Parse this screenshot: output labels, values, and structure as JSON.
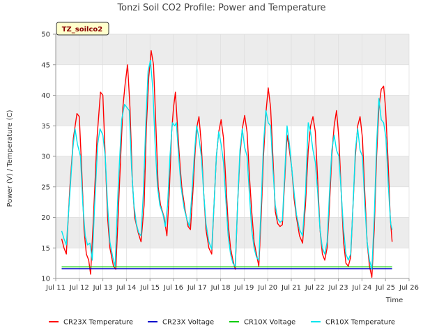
{
  "chart_data": {
    "type": "line",
    "title": "Tonzi Soil CO2 Profile: Power and Temperature",
    "xlabel": "Time",
    "ylabel": "Power (V) / Temperature (C)",
    "ylim": [
      10,
      50
    ],
    "yticks": [
      10,
      15,
      20,
      25,
      30,
      35,
      40,
      45,
      50
    ],
    "xlim": [
      11,
      26
    ],
    "xticks": [
      {
        "v": 11,
        "label": "Jul 11"
      },
      {
        "v": 12,
        "label": "Jul 12"
      },
      {
        "v": 13,
        "label": "Jul 13"
      },
      {
        "v": 14,
        "label": "Jul 14"
      },
      {
        "v": 15,
        "label": "Jul 15"
      },
      {
        "v": 16,
        "label": "Jul 16"
      },
      {
        "v": 17,
        "label": "Jul 17"
      },
      {
        "v": 18,
        "label": "Jul 18"
      },
      {
        "v": 19,
        "label": "Jul 19"
      },
      {
        "v": 20,
        "label": "Jul 20"
      },
      {
        "v": 21,
        "label": "Jul 21"
      },
      {
        "v": 22,
        "label": "Jul 22"
      },
      {
        "v": 23,
        "label": "Jul 23"
      },
      {
        "v": 24,
        "label": "Jul 24"
      },
      {
        "v": 25,
        "label": "Jul 25"
      },
      {
        "v": 26,
        "label": "Jul 26"
      }
    ],
    "tag": "TZ_soilco2",
    "grid": true,
    "legend_position": "bottom",
    "series": [
      {
        "name": "CR23X Temperature",
        "color": "#ff0000",
        "points": [
          [
            11.25,
            16.5
          ],
          [
            11.35,
            15.0
          ],
          [
            11.45,
            14.0
          ],
          [
            11.6,
            25.0
          ],
          [
            11.75,
            33.0
          ],
          [
            11.9,
            37.0
          ],
          [
            12.0,
            36.5
          ],
          [
            12.1,
            28.0
          ],
          [
            12.2,
            18.0
          ],
          [
            12.3,
            14.0
          ],
          [
            12.4,
            13.0
          ],
          [
            12.48,
            10.7
          ],
          [
            12.6,
            20.0
          ],
          [
            12.75,
            33.0
          ],
          [
            12.9,
            40.5
          ],
          [
            13.0,
            40.0
          ],
          [
            13.1,
            30.0
          ],
          [
            13.2,
            20.0
          ],
          [
            13.3,
            15.0
          ],
          [
            13.45,
            12.0
          ],
          [
            13.55,
            11.5
          ],
          [
            13.7,
            25.0
          ],
          [
            13.85,
            38.0
          ],
          [
            13.95,
            42.0
          ],
          [
            14.05,
            45.0
          ],
          [
            14.15,
            38.0
          ],
          [
            14.25,
            26.0
          ],
          [
            14.35,
            20.0
          ],
          [
            14.5,
            17.5
          ],
          [
            14.62,
            16.0
          ],
          [
            14.75,
            22.0
          ],
          [
            14.85,
            35.0
          ],
          [
            14.95,
            43.0
          ],
          [
            15.05,
            47.3
          ],
          [
            15.15,
            45.0
          ],
          [
            15.25,
            35.0
          ],
          [
            15.35,
            25.0
          ],
          [
            15.45,
            22.0
          ],
          [
            15.6,
            20.0
          ],
          [
            15.72,
            17.0
          ],
          [
            15.82,
            24.0
          ],
          [
            15.92,
            34.0
          ],
          [
            16.0,
            38.0
          ],
          [
            16.08,
            40.5
          ],
          [
            16.15,
            36.0
          ],
          [
            16.25,
            30.0
          ],
          [
            16.35,
            25.0
          ],
          [
            16.5,
            21.0
          ],
          [
            16.62,
            18.5
          ],
          [
            16.72,
            18.0
          ],
          [
            16.82,
            24.0
          ],
          [
            16.92,
            31.0
          ],
          [
            17.0,
            35.0
          ],
          [
            17.08,
            36.5
          ],
          [
            17.18,
            32.0
          ],
          [
            17.28,
            24.0
          ],
          [
            17.38,
            18.0
          ],
          [
            17.5,
            15.0
          ],
          [
            17.62,
            14.0
          ],
          [
            17.72,
            22.0
          ],
          [
            17.82,
            30.0
          ],
          [
            17.92,
            34.0
          ],
          [
            18.02,
            36.0
          ],
          [
            18.12,
            33.0
          ],
          [
            18.22,
            26.0
          ],
          [
            18.32,
            19.0
          ],
          [
            18.42,
            15.0
          ],
          [
            18.52,
            13.0
          ],
          [
            18.62,
            11.5
          ],
          [
            18.72,
            22.0
          ],
          [
            18.82,
            30.0
          ],
          [
            18.92,
            34.5
          ],
          [
            19.02,
            36.7
          ],
          [
            19.12,
            34.0
          ],
          [
            19.22,
            27.0
          ],
          [
            19.32,
            21.0
          ],
          [
            19.42,
            16.0
          ],
          [
            19.52,
            14.0
          ],
          [
            19.62,
            12.0
          ],
          [
            19.72,
            20.0
          ],
          [
            19.82,
            30.0
          ],
          [
            19.92,
            37.0
          ],
          [
            20.02,
            41.2
          ],
          [
            20.12,
            38.0
          ],
          [
            20.22,
            30.0
          ],
          [
            20.32,
            21.0
          ],
          [
            20.42,
            19.0
          ],
          [
            20.52,
            18.5
          ],
          [
            20.62,
            18.8
          ],
          [
            20.72,
            26.0
          ],
          [
            20.82,
            33.5
          ],
          [
            20.92,
            31.0
          ],
          [
            21.02,
            28.0
          ],
          [
            21.12,
            23.0
          ],
          [
            21.22,
            20.0
          ],
          [
            21.35,
            17.0
          ],
          [
            21.48,
            15.8
          ],
          [
            21.6,
            22.0
          ],
          [
            21.72,
            31.0
          ],
          [
            21.82,
            35.0
          ],
          [
            21.92,
            36.5
          ],
          [
            22.02,
            34.0
          ],
          [
            22.12,
            26.0
          ],
          [
            22.22,
            18.0
          ],
          [
            22.32,
            14.0
          ],
          [
            22.42,
            13.0
          ],
          [
            22.52,
            15.0
          ],
          [
            22.62,
            22.0
          ],
          [
            22.72,
            30.0
          ],
          [
            22.82,
            35.0
          ],
          [
            22.92,
            37.5
          ],
          [
            23.02,
            33.0
          ],
          [
            23.12,
            24.0
          ],
          [
            23.22,
            16.0
          ],
          [
            23.32,
            12.5
          ],
          [
            23.42,
            12.0
          ],
          [
            23.52,
            13.5
          ],
          [
            23.62,
            22.0
          ],
          [
            23.72,
            30.0
          ],
          [
            23.82,
            35.0
          ],
          [
            23.92,
            36.5
          ],
          [
            24.02,
            33.0
          ],
          [
            24.12,
            24.0
          ],
          [
            24.22,
            16.0
          ],
          [
            24.32,
            12.0
          ],
          [
            24.42,
            10.2
          ],
          [
            24.52,
            18.0
          ],
          [
            24.62,
            30.0
          ],
          [
            24.72,
            38.0
          ],
          [
            24.82,
            41.0
          ],
          [
            24.92,
            41.5
          ],
          [
            25.0,
            38.0
          ],
          [
            25.1,
            30.0
          ],
          [
            25.2,
            20.0
          ],
          [
            25.28,
            16.0
          ]
        ]
      },
      {
        "name": "CR23X Voltage",
        "color": "#0000cc",
        "points": [
          [
            11.25,
            11.6
          ],
          [
            12.5,
            11.6
          ],
          [
            13.5,
            11.6
          ],
          [
            18.5,
            11.6
          ],
          [
            23.5,
            11.6
          ],
          [
            25.28,
            11.6
          ]
        ]
      },
      {
        "name": "CR10X Voltage",
        "color": "#00cc00",
        "points": [
          [
            11.25,
            11.9
          ],
          [
            25.28,
            11.9
          ]
        ]
      },
      {
        "name": "CR10X Temperature",
        "color": "#00e5ee",
        "points": [
          [
            11.25,
            17.8
          ],
          [
            11.35,
            16.5
          ],
          [
            11.45,
            15.5
          ],
          [
            11.6,
            24.0
          ],
          [
            11.72,
            31.0
          ],
          [
            11.82,
            34.5
          ],
          [
            11.92,
            32.0
          ],
          [
            12.05,
            30.0
          ],
          [
            12.15,
            22.0
          ],
          [
            12.25,
            17.0
          ],
          [
            12.35,
            15.5
          ],
          [
            12.45,
            15.8
          ],
          [
            12.55,
            13.0
          ],
          [
            12.65,
            22.0
          ],
          [
            12.78,
            32.0
          ],
          [
            12.88,
            34.5
          ],
          [
            13.0,
            33.5
          ],
          [
            13.1,
            30.0
          ],
          [
            13.2,
            22.0
          ],
          [
            13.3,
            16.0
          ],
          [
            13.42,
            13.5
          ],
          [
            13.52,
            12.0
          ],
          [
            13.65,
            25.0
          ],
          [
            13.8,
            36.0
          ],
          [
            13.92,
            38.5
          ],
          [
            14.02,
            38.0
          ],
          [
            14.12,
            37.5
          ],
          [
            14.22,
            28.0
          ],
          [
            14.32,
            22.0
          ],
          [
            14.42,
            19.0
          ],
          [
            14.52,
            17.5
          ],
          [
            14.62,
            17.0
          ],
          [
            14.72,
            24.0
          ],
          [
            14.82,
            35.0
          ],
          [
            14.92,
            44.0
          ],
          [
            15.02,
            45.7
          ],
          [
            15.12,
            41.0
          ],
          [
            15.22,
            32.0
          ],
          [
            15.32,
            25.0
          ],
          [
            15.42,
            22.0
          ],
          [
            15.55,
            20.5
          ],
          [
            15.65,
            18.5
          ],
          [
            15.75,
            22.0
          ],
          [
            15.85,
            30.0
          ],
          [
            15.95,
            35.5
          ],
          [
            16.05,
            35.0
          ],
          [
            16.12,
            35.5
          ],
          [
            16.22,
            30.0
          ],
          [
            16.32,
            25.0
          ],
          [
            16.45,
            21.5
          ],
          [
            16.58,
            19.5
          ],
          [
            16.68,
            18.5
          ],
          [
            16.78,
            24.0
          ],
          [
            16.88,
            30.0
          ],
          [
            16.98,
            35.0
          ],
          [
            17.08,
            33.0
          ],
          [
            17.18,
            30.0
          ],
          [
            17.28,
            24.0
          ],
          [
            17.38,
            19.0
          ],
          [
            17.5,
            16.0
          ],
          [
            17.62,
            14.8
          ],
          [
            17.72,
            22.0
          ],
          [
            17.82,
            30.0
          ],
          [
            17.92,
            34.0
          ],
          [
            18.02,
            32.0
          ],
          [
            18.12,
            29.0
          ],
          [
            18.22,
            23.0
          ],
          [
            18.32,
            17.0
          ],
          [
            18.42,
            14.0
          ],
          [
            18.52,
            12.5
          ],
          [
            18.62,
            12.0
          ],
          [
            18.72,
            22.0
          ],
          [
            18.82,
            31.0
          ],
          [
            18.92,
            34.5
          ],
          [
            19.02,
            31.5
          ],
          [
            19.12,
            30.0
          ],
          [
            19.22,
            24.0
          ],
          [
            19.32,
            18.0
          ],
          [
            19.42,
            15.0
          ],
          [
            19.52,
            13.5
          ],
          [
            19.62,
            13.0
          ],
          [
            19.72,
            22.0
          ],
          [
            19.82,
            32.0
          ],
          [
            19.92,
            37.5
          ],
          [
            20.02,
            35.5
          ],
          [
            20.12,
            35.0
          ],
          [
            20.22,
            28.0
          ],
          [
            20.32,
            22.0
          ],
          [
            20.42,
            19.8
          ],
          [
            20.52,
            19.2
          ],
          [
            20.62,
            19.5
          ],
          [
            20.72,
            27.0
          ],
          [
            20.82,
            35.0
          ],
          [
            20.92,
            32.0
          ],
          [
            21.02,
            28.0
          ],
          [
            21.12,
            24.0
          ],
          [
            21.22,
            20.5
          ],
          [
            21.35,
            18.0
          ],
          [
            21.48,
            17.0
          ],
          [
            21.6,
            24.0
          ],
          [
            21.72,
            35.5
          ],
          [
            21.82,
            34.0
          ],
          [
            21.92,
            31.0
          ],
          [
            22.02,
            29.0
          ],
          [
            22.12,
            24.0
          ],
          [
            22.22,
            18.0
          ],
          [
            22.32,
            15.0
          ],
          [
            22.42,
            14.0
          ],
          [
            22.52,
            16.0
          ],
          [
            22.62,
            24.0
          ],
          [
            22.72,
            31.0
          ],
          [
            22.82,
            33.5
          ],
          [
            22.92,
            31.0
          ],
          [
            23.02,
            30.0
          ],
          [
            23.12,
            24.0
          ],
          [
            23.22,
            18.0
          ],
          [
            23.32,
            14.0
          ],
          [
            23.42,
            13.0
          ],
          [
            23.52,
            14.0
          ],
          [
            23.62,
            22.0
          ],
          [
            23.72,
            31.0
          ],
          [
            23.82,
            34.5
          ],
          [
            23.92,
            31.0
          ],
          [
            24.02,
            30.0
          ],
          [
            24.12,
            22.0
          ],
          [
            24.22,
            16.0
          ],
          [
            24.32,
            13.0
          ],
          [
            24.42,
            11.5
          ],
          [
            24.52,
            20.0
          ],
          [
            24.62,
            32.0
          ],
          [
            24.72,
            39.5
          ],
          [
            24.82,
            36.0
          ],
          [
            24.92,
            35.5
          ],
          [
            25.02,
            33.0
          ],
          [
            25.12,
            25.0
          ],
          [
            25.22,
            19.0
          ],
          [
            25.28,
            18.0
          ]
        ]
      }
    ]
  }
}
